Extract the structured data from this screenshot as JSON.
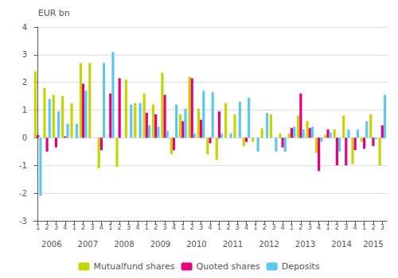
{
  "chart_data": {
    "type": "bar",
    "y_label": "EUR bn",
    "categories": [
      "1",
      "2",
      "3",
      "4",
      "1",
      "2",
      "3",
      "4",
      "1",
      "2",
      "3",
      "4",
      "1",
      "2",
      "3",
      "4",
      "1",
      "2",
      "3",
      "4",
      "1",
      "2",
      "3",
      "4",
      "1",
      "2",
      "3",
      "4",
      "1",
      "2",
      "3",
      "4",
      "1",
      "2",
      "3",
      "4",
      "1",
      "2",
      "3"
    ],
    "years": [
      "2006",
      "2006",
      "2006",
      "2006",
      "2007",
      "2007",
      "2007",
      "2007",
      "2008",
      "2008",
      "2008",
      "2008",
      "2009",
      "2009",
      "2009",
      "2009",
      "2010",
      "2010",
      "2010",
      "2010",
      "2011",
      "2011",
      "2011",
      "2011",
      "2012",
      "2012",
      "2012",
      "2012",
      "2013",
      "2013",
      "2013",
      "2013",
      "2014",
      "2014",
      "2014",
      "2014",
      "2015",
      "2015",
      "2015"
    ],
    "series": [
      {
        "name": "Mutualfund shares",
        "color": "#c8d400",
        "values": [
          2.4,
          1.8,
          1.55,
          1.5,
          1.25,
          2.7,
          2.7,
          -1.1,
          0.0,
          -1.05,
          2.1,
          1.25,
          1.6,
          1.2,
          2.35,
          -0.6,
          0.85,
          2.2,
          1.05,
          -0.6,
          -0.8,
          1.25,
          0.85,
          -0.3,
          -0.15,
          0.35,
          0.85,
          0.15,
          0.15,
          0.8,
          0.6,
          -0.55,
          0.1,
          0.3,
          0.8,
          -0.95,
          -0.15,
          0.85,
          -1.0
        ]
      },
      {
        "name": "Quoted shares",
        "color": "#e6007e",
        "values": [
          0.1,
          -0.5,
          -0.35,
          0.05,
          0.0,
          1.95,
          0.0,
          -0.45,
          1.6,
          2.15,
          0.0,
          0.0,
          0.9,
          0.85,
          1.55,
          -0.45,
          0.6,
          2.15,
          0.65,
          -0.2,
          0.95,
          0.0,
          0.0,
          -0.15,
          0.0,
          0.0,
          0.0,
          -0.35,
          0.35,
          1.6,
          0.35,
          -1.2,
          0.3,
          -1.0,
          -1.0,
          -0.45,
          -0.4,
          -0.3,
          0.45
        ]
      },
      {
        "name": "Deposits",
        "color": "#5bc8f0",
        "values": [
          -2.1,
          1.4,
          0.95,
          0.5,
          0.5,
          1.7,
          0.0,
          2.7,
          3.1,
          0.0,
          1.2,
          1.25,
          0.45,
          0.4,
          0.25,
          1.2,
          1.05,
          0.15,
          1.7,
          1.65,
          0.15,
          0.15,
          1.3,
          1.45,
          -0.5,
          0.9,
          -0.5,
          -0.5,
          0.4,
          0.3,
          0.4,
          -0.15,
          0.2,
          -0.5,
          0.3,
          0.3,
          0.6,
          -0.05,
          1.55
        ]
      }
    ],
    "ylim": [
      -3,
      4
    ],
    "yticks": [
      -3,
      -2,
      -1,
      0,
      1,
      2,
      3,
      4
    ],
    "grid": true,
    "legend": "bottom"
  }
}
